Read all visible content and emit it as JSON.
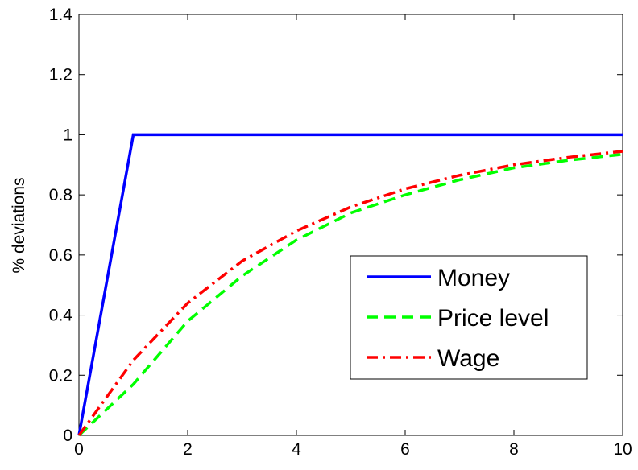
{
  "chart_data": {
    "type": "line",
    "y_label": "% deviations",
    "x": [
      0,
      1,
      2,
      3,
      4,
      5,
      6,
      7,
      8,
      9,
      10
    ],
    "series": [
      {
        "name": "Money",
        "color": "#0000ff",
        "style": "solid",
        "values": [
          0,
          1,
          1,
          1,
          1,
          1,
          1,
          1,
          1,
          1,
          1
        ]
      },
      {
        "name": "Price level",
        "color": "#00ff00",
        "style": "dashed",
        "values": [
          0,
          0.17,
          0.38,
          0.53,
          0.65,
          0.74,
          0.8,
          0.85,
          0.89,
          0.915,
          0.935
        ]
      },
      {
        "name": "Wage",
        "color": "#ff0000",
        "style": "dashdot",
        "values": [
          0,
          0.25,
          0.44,
          0.58,
          0.68,
          0.76,
          0.82,
          0.865,
          0.9,
          0.925,
          0.945
        ]
      }
    ],
    "xlim": [
      0,
      10
    ],
    "xticks": [
      0,
      2,
      4,
      6,
      8,
      10
    ],
    "ylim": [
      0,
      1.4
    ],
    "yticks": [
      0,
      0.2,
      0.4,
      0.6,
      0.8,
      1,
      1.2,
      1.4
    ],
    "grid": false,
    "legend": "right"
  }
}
